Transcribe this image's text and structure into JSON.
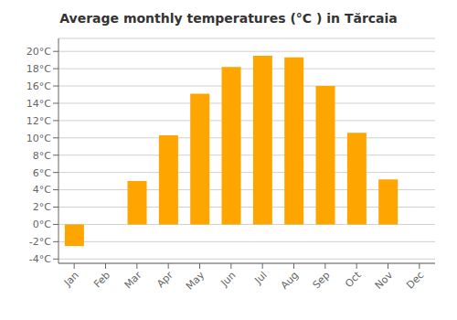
{
  "chart_data": {
    "type": "bar",
    "title": "Average monthly temperatures (°C ) in Tărcaia",
    "categories": [
      "Jan",
      "Feb",
      "Mar",
      "Apr",
      "May",
      "Jun",
      "Jul",
      "Aug",
      "Sep",
      "Oct",
      "Nov",
      "Dec"
    ],
    "values": [
      -2.5,
      0.0,
      5.0,
      10.3,
      15.1,
      18.2,
      19.5,
      19.3,
      16.0,
      10.6,
      5.2,
      0.0
    ],
    "color": "#FFA500",
    "ylim": [
      -4.5,
      21.5
    ],
    "yticks": [
      {
        "value": -4,
        "label": "-4°C"
      },
      {
        "value": -2,
        "label": "-2°C"
      },
      {
        "value": 0,
        "label": "0°C"
      },
      {
        "value": 2,
        "label": "2°C"
      },
      {
        "value": 4,
        "label": "4°C"
      },
      {
        "value": 6,
        "label": "6°C"
      },
      {
        "value": 8,
        "label": "8°C"
      },
      {
        "value": 10,
        "label": "10°C"
      },
      {
        "value": 12,
        "label": "12°C"
      },
      {
        "value": 14,
        "label": "14°C"
      },
      {
        "value": 16,
        "label": "16°C"
      },
      {
        "value": 18,
        "label": "18°C"
      },
      {
        "value": 20,
        "label": "20°C"
      }
    ],
    "grid": true
  }
}
